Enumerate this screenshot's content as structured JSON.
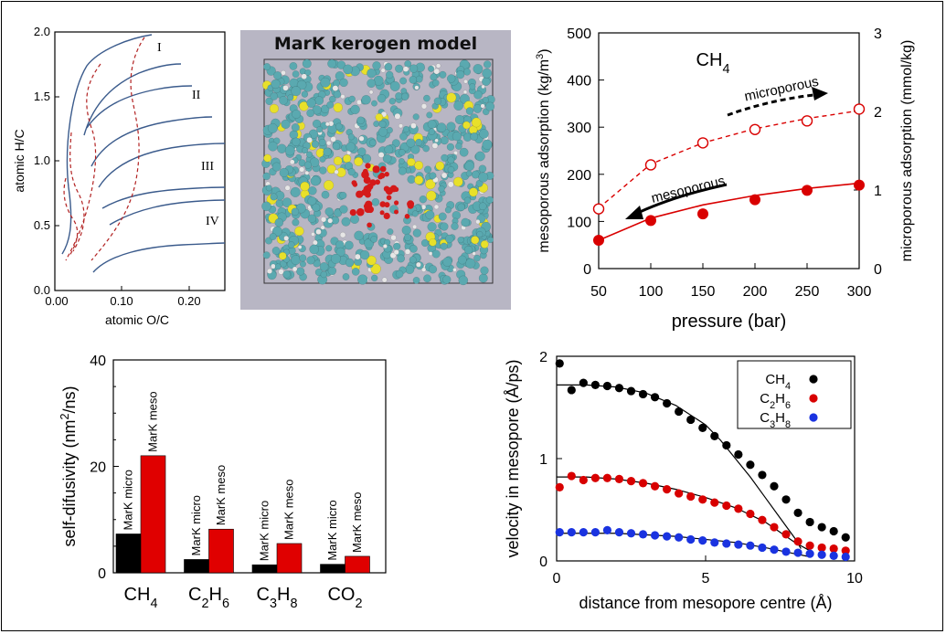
{
  "panel_vk": {
    "xlabel": "atomic O/C",
    "ylabel": "atomic H/C",
    "xticks": [
      "0.00",
      "0.10",
      "0.20"
    ],
    "yticks": [
      "0.0",
      "0.5",
      "1.0",
      "1.5",
      "2.0"
    ],
    "types": [
      "I",
      "II",
      "III",
      "IV"
    ],
    "line_color": "#3b5b8c",
    "dash_color": "#b22222"
  },
  "panel_model": {
    "title": "MarK kerogen model"
  },
  "chart_data": [
    {
      "type": "scatter",
      "title": "CH4",
      "xlabel": "pressure (bar)",
      "ylabel_left": "mesoporous adsorption (kg/m3)",
      "ylabel_right": "microporous adsorption (mmol/kg)",
      "xlim": [
        50,
        300
      ],
      "ylim_left": [
        0,
        500
      ],
      "ylim_right": [
        0,
        3
      ],
      "x_ticks": [
        "50",
        "100",
        "150",
        "200",
        "250",
        "300"
      ],
      "y_left_ticks": [
        "0",
        "100",
        "200",
        "300",
        "400",
        "500"
      ],
      "y_right_ticks": [
        "0",
        "1",
        "2",
        "3"
      ],
      "annotations": [
        "microporous",
        "mesoporous"
      ],
      "series": [
        {
          "name": "mesoporous",
          "axis": "left",
          "x": [
            50,
            100,
            150,
            200,
            250,
            300
          ],
          "values": [
            60,
            102,
            116,
            146,
            166,
            177
          ],
          "fit": [
            60,
            107,
            135,
            155,
            170,
            181
          ],
          "filled": true,
          "color": "#d90000"
        },
        {
          "name": "microporous",
          "axis": "right",
          "x": [
            50,
            100,
            150,
            200,
            250,
            300
          ],
          "values": [
            0.76,
            1.32,
            1.6,
            1.77,
            1.88,
            2.03
          ],
          "fit": [
            0.77,
            1.33,
            1.6,
            1.78,
            1.91,
            2.01
          ],
          "filled": false,
          "color": "#d90000"
        }
      ]
    },
    {
      "type": "bar",
      "ylabel": "self-difusivity (nm2/ns)",
      "ylim": [
        0,
        40
      ],
      "y_ticks": [
        "0",
        "20",
        "40"
      ],
      "categories": [
        "CH4",
        "C2H6",
        "C3H8",
        "CO2"
      ],
      "series": [
        {
          "name": "MarK micro",
          "color": "#000000",
          "values": [
            7.3,
            2.5,
            1.5,
            1.6
          ]
        },
        {
          "name": "MarK meso",
          "color": "#e00000",
          "values": [
            22.0,
            8.2,
            5.5,
            3.1
          ]
        }
      ]
    },
    {
      "type": "scatter",
      "xlabel": "distance from mesopore centre (Å)",
      "ylabel": "velocity in mesopore (Å/ps)",
      "xlim": [
        0,
        10
      ],
      "ylim": [
        0,
        2
      ],
      "x_ticks": [
        "0",
        "5",
        "10"
      ],
      "y_ticks": [
        "0",
        "1",
        "2"
      ],
      "series": [
        {
          "name": "CH4",
          "color": "#000000",
          "x": [
            0.1,
            0.5,
            0.9,
            1.3,
            1.7,
            2.1,
            2.5,
            2.9,
            3.3,
            3.7,
            4.1,
            4.5,
            4.9,
            5.3,
            5.7,
            6.1,
            6.5,
            6.9,
            7.3,
            7.7,
            8.1,
            8.5,
            8.9,
            9.3,
            9.7
          ],
          "values": [
            1.93,
            1.67,
            1.74,
            1.72,
            1.71,
            1.69,
            1.66,
            1.63,
            1.6,
            1.54,
            1.46,
            1.38,
            1.3,
            1.22,
            1.13,
            1.04,
            0.94,
            0.84,
            0.73,
            0.6,
            0.47,
            0.38,
            0.33,
            0.29,
            0.23
          ],
          "fit_x": [
            0,
            1,
            2,
            3,
            4,
            5,
            5.5,
            6,
            6.5,
            7,
            7.5,
            8,
            8.2
          ],
          "fit": [
            1.72,
            1.72,
            1.7,
            1.64,
            1.52,
            1.33,
            1.18,
            1.0,
            0.82,
            0.62,
            0.42,
            0.22,
            0.12
          ]
        },
        {
          "name": "C2H6",
          "color": "#d80000",
          "x": [
            0.1,
            0.5,
            0.9,
            1.3,
            1.7,
            2.1,
            2.5,
            2.9,
            3.3,
            3.7,
            4.1,
            4.5,
            4.9,
            5.3,
            5.7,
            6.1,
            6.5,
            6.9,
            7.3,
            7.7,
            8.1,
            8.5,
            8.9,
            9.3,
            9.7
          ],
          "values": [
            0.72,
            0.83,
            0.79,
            0.81,
            0.81,
            0.8,
            0.78,
            0.76,
            0.73,
            0.7,
            0.66,
            0.63,
            0.6,
            0.57,
            0.54,
            0.51,
            0.46,
            0.4,
            0.33,
            0.26,
            0.19,
            0.15,
            0.13,
            0.12,
            0.1
          ],
          "fit_x": [
            0,
            1,
            2,
            3,
            4,
            5,
            6,
            7,
            7.5,
            8,
            8.5
          ],
          "fit": [
            0.82,
            0.82,
            0.8,
            0.76,
            0.7,
            0.62,
            0.52,
            0.38,
            0.28,
            0.18,
            0.1
          ]
        },
        {
          "name": "C3H8",
          "color": "#1a33e0",
          "x": [
            0.1,
            0.5,
            0.9,
            1.3,
            1.7,
            2.1,
            2.5,
            2.9,
            3.3,
            3.7,
            4.1,
            4.5,
            4.9,
            5.3,
            5.7,
            6.1,
            6.5,
            6.9,
            7.3,
            7.7,
            8.1,
            8.5,
            8.9,
            9.3,
            9.7
          ],
          "values": [
            0.28,
            0.28,
            0.28,
            0.28,
            0.3,
            0.28,
            0.27,
            0.26,
            0.25,
            0.24,
            0.23,
            0.21,
            0.2,
            0.18,
            0.17,
            0.16,
            0.15,
            0.13,
            0.11,
            0.09,
            0.08,
            0.07,
            0.06,
            0.05,
            0.04
          ],
          "fit_x": [
            0,
            2,
            4,
            6,
            7,
            8,
            8.5
          ],
          "fit": [
            0.27,
            0.27,
            0.24,
            0.18,
            0.13,
            0.07,
            0.04
          ]
        }
      ]
    }
  ]
}
